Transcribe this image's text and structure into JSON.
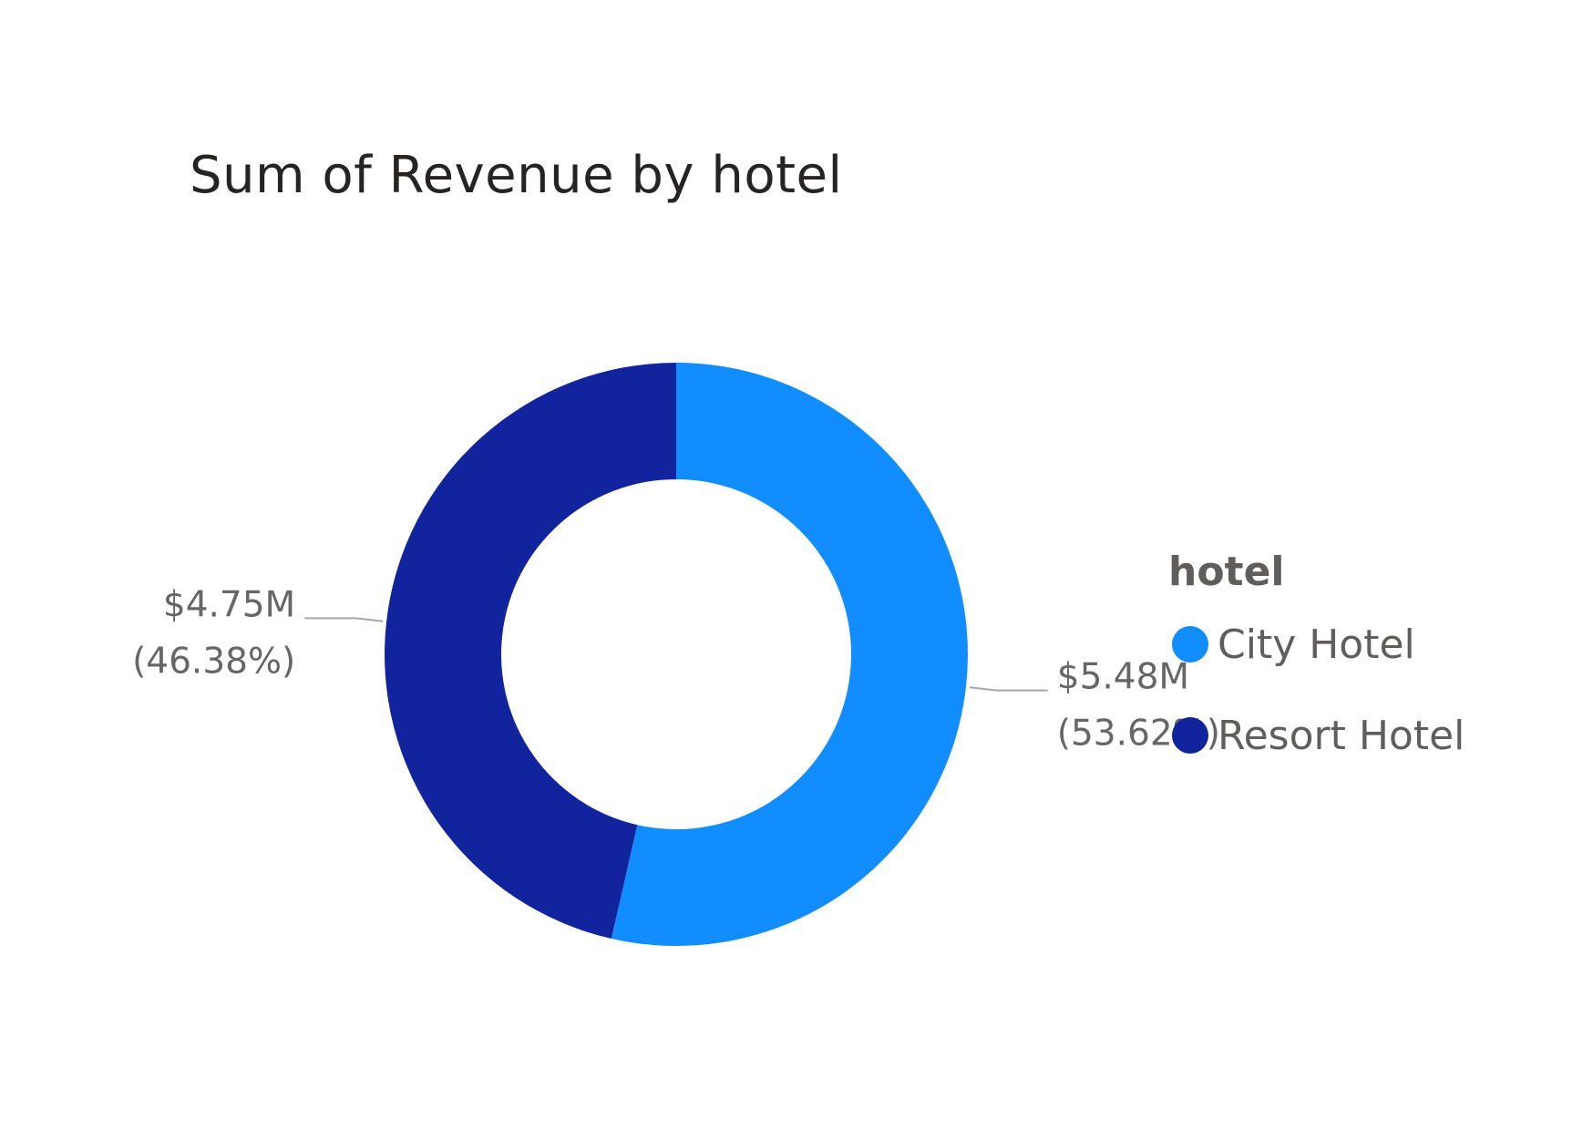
{
  "chart_data": {
    "type": "pie",
    "variant": "donut",
    "title": "Sum of Revenue by hotel",
    "legend_title": "hotel",
    "legend_position": "right",
    "slices": [
      {
        "label": "City Hotel",
        "value": 5.48,
        "value_label": "$5.48M",
        "percent": 53.62,
        "percent_label": "(53.62%)",
        "color": "#118dff"
      },
      {
        "label": "Resort Hotel",
        "value": 4.75,
        "value_label": "$4.75M",
        "percent": 46.38,
        "percent_label": "(46.38%)",
        "color": "#12239e"
      }
    ]
  }
}
